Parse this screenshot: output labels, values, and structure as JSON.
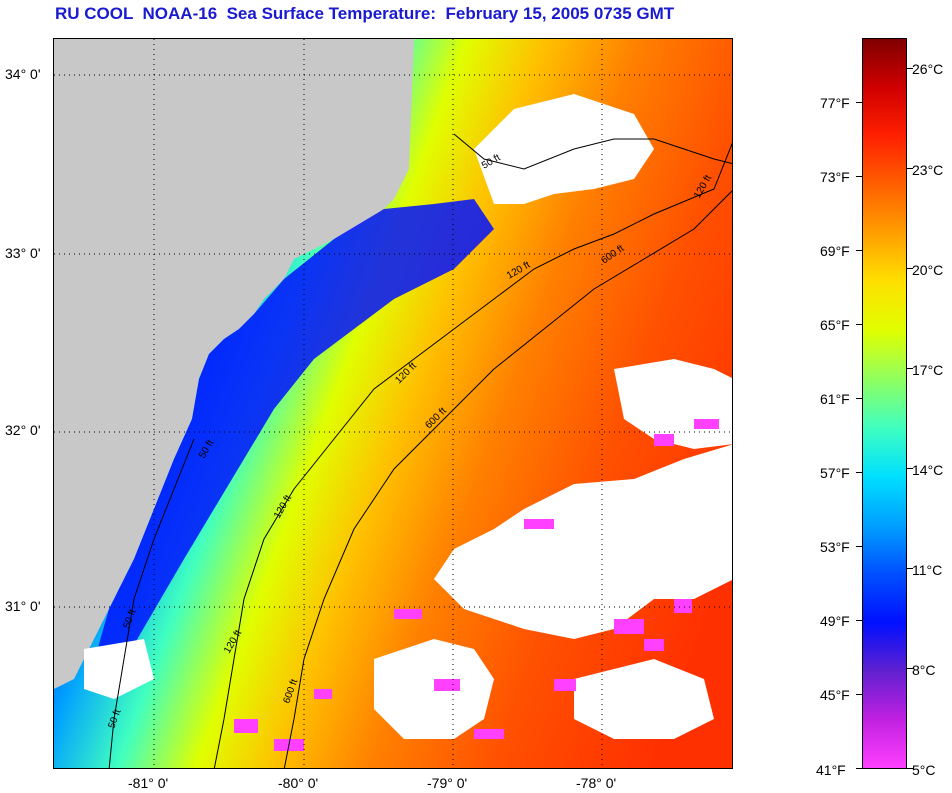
{
  "title": "RU COOL  NOAA-16  Sea Surface Temperature:  February 15, 2005 0735 GMT",
  "map": {
    "latitude_labels": [
      "34° 0'",
      "33° 0'",
      "32° 0'",
      "31° 0'"
    ],
    "longitude_labels": [
      "-81° 0'",
      "-80° 0'",
      "-79° 0'",
      "-78° 0'"
    ],
    "contour_labels": [
      "50 ft",
      "120 ft",
      "600 ft",
      "120 ft",
      "600 ft",
      "120 ft",
      "50 ft",
      "120 ft",
      "50 ft",
      "120 ft",
      "600 ft",
      "50 ft"
    ],
    "colors": {
      "land": "#c8c8c8",
      "cloud_mask": "#ffffff",
      "grid": "#000000"
    }
  },
  "colorbar": {
    "fahrenheit_labels": [
      "77°F",
      "73°F",
      "69°F",
      "65°F",
      "61°F",
      "57°F",
      "53°F",
      "49°F",
      "45°F",
      "41°F"
    ],
    "celsius_labels": [
      "26°C",
      "23°C",
      "20°C",
      "17°C",
      "14°C",
      "11°C",
      "8°C",
      "5°C"
    ],
    "colors": [
      "#ff40ff",
      "#c020e0",
      "#6020d0",
      "#0010ff",
      "#0050ff",
      "#00a0ff",
      "#00e0ff",
      "#40ffc0",
      "#90ff60",
      "#e0ff00",
      "#ffe000",
      "#ffa000",
      "#ff6000",
      "#ff2000",
      "#d00000",
      "#800000"
    ]
  }
}
